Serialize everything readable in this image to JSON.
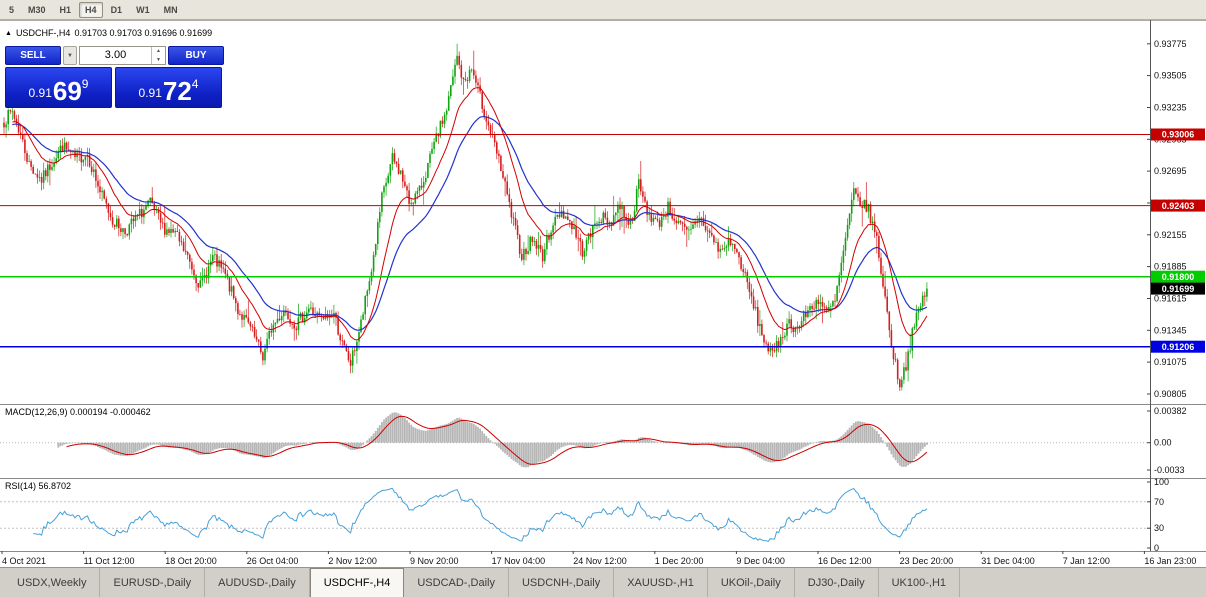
{
  "toolbar": {
    "timeframes": [
      "5",
      "M30",
      "H1",
      "H4",
      "D1",
      "W1",
      "MN"
    ],
    "active": "H4"
  },
  "chart": {
    "marker": "▲",
    "symbol": "USDCHF-,H4",
    "ohlc": "0.91703 0.91703 0.91696 0.91699",
    "scale": {
      "max": 0.9396,
      "min": 0.9072
    },
    "axis_ticks": [
      "0.93775",
      "0.93505",
      "0.93235",
      "0.92965",
      "0.92695",
      "0.92425",
      "0.92155",
      "0.91885",
      "0.91615",
      "0.91345",
      "0.91075",
      "0.90805"
    ],
    "levels": [
      {
        "price": 0.93006,
        "label": "0.93006",
        "color": "#c40000"
      },
      {
        "price": 0.92403,
        "label": "0.92403",
        "color": "#c40000"
      },
      {
        "price": 0.918,
        "label": "0.91800",
        "color": "#00cc00"
      },
      {
        "price": 0.91206,
        "label": "0.91206",
        "color": "#0000e0"
      }
    ],
    "last_price": {
      "price": 0.91699,
      "label": "0.91699",
      "color": "#000000"
    }
  },
  "trade_panel": {
    "sell_label": "SELL",
    "buy_label": "BUY",
    "lot": "3.00",
    "dropdown_icon": "▼",
    "spin_up_icon": "▲",
    "spin_down_icon": "▼",
    "sell_price": {
      "small": "0.91",
      "big": "69",
      "sup": "9"
    },
    "buy_price": {
      "small": "0.91",
      "big": "72",
      "sup": "4"
    }
  },
  "macd": {
    "label": "MACD(12,26,9) 0.000194 -0.000462",
    "ticks": [
      "0.00382",
      "0.00",
      "-0.0033"
    ],
    "range": {
      "max": 0.0043,
      "min": -0.0039
    }
  },
  "rsi": {
    "label": "RSI(14) 56.8702",
    "ticks": [
      "100",
      "70",
      "30",
      "0"
    ],
    "dashed_levels": [
      70,
      30
    ],
    "range": {
      "max": 100,
      "min": 0
    }
  },
  "time_axis": {
    "labels": [
      "4 Oct 2021",
      "11 Oct 12:00",
      "18 Oct 20:00",
      "26 Oct 04:00",
      "2 Nov 12:00",
      "9 Nov 20:00",
      "17 Nov 04:00",
      "24 Nov 12:00",
      "1 Dec 20:00",
      "9 Dec 04:00",
      "16 Dec 12:00",
      "23 Dec 20:00",
      "31 Dec 04:00",
      "7 Jan 12:00",
      "16 Jan 23:00"
    ]
  },
  "tabs": {
    "items": [
      "USDX,Weekly",
      "EURUSD-,Daily",
      "AUDUSD-,Daily",
      "USDCHF-,H4",
      "USDCAD-,Daily",
      "USDCNH-,Daily",
      "XAUUSD-,H1",
      "UKOil-,Daily",
      "DJ30-,Daily",
      "UK100-,H1"
    ],
    "active": "USDCHF-,H4"
  },
  "colors": {
    "up": "#0fa30f",
    "down": "#d61c1c",
    "ma_fast": "#d40000",
    "ma_slow": "#2233cc",
    "macd_hist": "#b6b6b6",
    "macd_signal": "#cc0000",
    "rsi_line": "#46a0d8"
  },
  "chart_data": {
    "type": "candlestick",
    "symbol": "USDCHF",
    "timeframe": "H4",
    "bars": 443,
    "ma_fast_period": 16,
    "ma_slow_period": 34,
    "close_keyframes": [
      [
        0,
        0.9312
      ],
      [
        4,
        0.932
      ],
      [
        8,
        0.93
      ],
      [
        12,
        0.9275
      ],
      [
        18,
        0.9262
      ],
      [
        24,
        0.928
      ],
      [
        28,
        0.9291
      ],
      [
        34,
        0.928
      ],
      [
        40,
        0.9284
      ],
      [
        46,
        0.9252
      ],
      [
        52,
        0.9228
      ],
      [
        58,
        0.9218
      ],
      [
        64,
        0.9231
      ],
      [
        70,
        0.9242
      ],
      [
        76,
        0.9222
      ],
      [
        82,
        0.9216
      ],
      [
        88,
        0.9196
      ],
      [
        94,
        0.9172
      ],
      [
        100,
        0.9196
      ],
      [
        106,
        0.9181
      ],
      [
        112,
        0.9152
      ],
      [
        118,
        0.9136
      ],
      [
        124,
        0.9112
      ],
      [
        128,
        0.9136
      ],
      [
        134,
        0.9152
      ],
      [
        140,
        0.9139
      ],
      [
        146,
        0.9153
      ],
      [
        152,
        0.9143
      ],
      [
        158,
        0.9149
      ],
      [
        162,
        0.9122
      ],
      [
        166,
        0.9106
      ],
      [
        171,
        0.914
      ],
      [
        176,
        0.9186
      ],
      [
        181,
        0.9246
      ],
      [
        186,
        0.928
      ],
      [
        190,
        0.9268
      ],
      [
        194,
        0.9243
      ],
      [
        199,
        0.9252
      ],
      [
        203,
        0.9274
      ],
      [
        208,
        0.9302
      ],
      [
        212,
        0.9322
      ],
      [
        217,
        0.9366
      ],
      [
        220,
        0.9344
      ],
      [
        224,
        0.9356
      ],
      [
        228,
        0.9332
      ],
      [
        233,
        0.9302
      ],
      [
        238,
        0.9272
      ],
      [
        243,
        0.9232
      ],
      [
        248,
        0.9198
      ],
      [
        253,
        0.9212
      ],
      [
        258,
        0.9198
      ],
      [
        262,
        0.9222
      ],
      [
        267,
        0.9236
      ],
      [
        272,
        0.9224
      ],
      [
        277,
        0.9202
      ],
      [
        281,
        0.9216
      ],
      [
        285,
        0.9231
      ],
      [
        290,
        0.9226
      ],
      [
        295,
        0.9241
      ],
      [
        300,
        0.9224
      ],
      [
        304,
        0.9258
      ],
      [
        308,
        0.9236
      ],
      [
        313,
        0.9224
      ],
      [
        318,
        0.9239
      ],
      [
        323,
        0.9224
      ],
      [
        328,
        0.9216
      ],
      [
        333,
        0.9231
      ],
      [
        338,
        0.9216
      ],
      [
        343,
        0.9201
      ],
      [
        348,
        0.9211
      ],
      [
        353,
        0.9191
      ],
      [
        358,
        0.9161
      ],
      [
        363,
        0.9131
      ],
      [
        368,
        0.9112
      ],
      [
        372,
        0.9129
      ],
      [
        376,
        0.9141
      ],
      [
        380,
        0.9136
      ],
      [
        385,
        0.9151
      ],
      [
        390,
        0.9161
      ],
      [
        394,
        0.9149
      ],
      [
        398,
        0.9159
      ],
      [
        402,
        0.9201
      ],
      [
        407,
        0.9251
      ],
      [
        411,
        0.9241
      ],
      [
        414,
        0.9237
      ],
      [
        418,
        0.9211
      ],
      [
        422,
        0.9161
      ],
      [
        426,
        0.9112
      ],
      [
        429,
        0.909
      ],
      [
        432,
        0.9106
      ],
      [
        435,
        0.9131
      ],
      [
        438,
        0.9151
      ],
      [
        440,
        0.9161
      ],
      [
        442,
        0.917
      ]
    ],
    "wick_overrides": {
      "high": {
        "217": 0.93775
      },
      "low": {
        "124": 0.9105,
        "166": 0.9098,
        "429": 0.9083
      }
    }
  }
}
